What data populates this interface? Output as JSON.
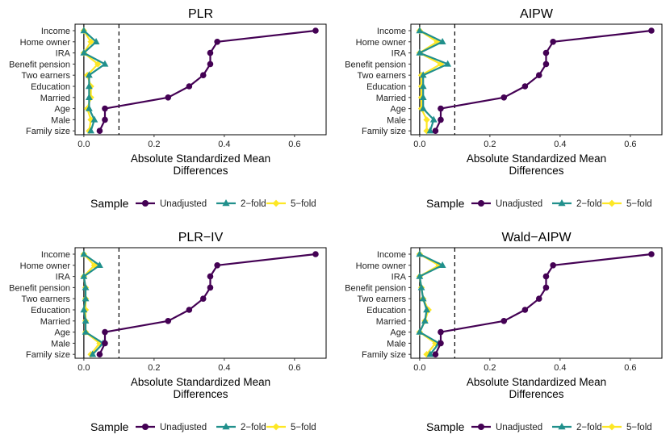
{
  "chart_data": [
    {
      "type": "line",
      "title": "PLR",
      "categories": [
        "Income",
        "Home owner",
        "IRA",
        "Benefit pension",
        "Two earners",
        "Education",
        "Married",
        "Age",
        "Male",
        "Family size"
      ],
      "xlabel": [
        "Absolute Standardized Mean",
        "Differences"
      ],
      "xlim": [
        -0.025,
        0.69
      ],
      "xticks": [
        "0.0",
        "0.2",
        "0.4",
        "0.6"
      ],
      "xtick_values": [
        0,
        0.2,
        0.4,
        0.6
      ],
      "ref_line": 0.1,
      "series": [
        {
          "name": "Unadjusted",
          "color": "#440154",
          "values": [
            0.66,
            0.38,
            0.36,
            0.36,
            0.34,
            0.3,
            0.24,
            0.06,
            0.06,
            0.045
          ]
        },
        {
          "name": "2-fold",
          "color": "#21908C",
          "values": [
            0.0,
            0.035,
            0.0,
            0.06,
            0.015,
            0.015,
            0.015,
            0.015,
            0.03,
            0.02
          ]
        },
        {
          "name": "5-fold",
          "color": "#FDE725",
          "values": [
            0.0,
            0.02,
            0.0,
            0.04,
            0.01,
            0.02,
            0.02,
            0.01,
            0.02,
            0.015
          ]
        }
      ],
      "legend": {
        "title": "Sample",
        "entries": [
          "Unadjusted",
          "2−fold",
          "5−fold"
        ]
      }
    },
    {
      "type": "line",
      "title": "AIPW",
      "categories": [
        "Income",
        "Home owner",
        "IRA",
        "Benefit pension",
        "Two earners",
        "Education",
        "Married",
        "Age",
        "Male",
        "Family size"
      ],
      "xlabel": [
        "Absolute Standardized Mean",
        "Differences"
      ],
      "xlim": [
        -0.025,
        0.69
      ],
      "xticks": [
        "0.0",
        "0.2",
        "0.4",
        "0.6"
      ],
      "xtick_values": [
        0,
        0.2,
        0.4,
        0.6
      ],
      "ref_line": 0.1,
      "series": [
        {
          "name": "Unadjusted",
          "color": "#440154",
          "values": [
            0.66,
            0.38,
            0.36,
            0.36,
            0.34,
            0.3,
            0.24,
            0.06,
            0.06,
            0.045
          ]
        },
        {
          "name": "2-fold",
          "color": "#21908C",
          "values": [
            0.0,
            0.065,
            0.0,
            0.08,
            0.01,
            0.01,
            0.01,
            0.01,
            0.04,
            0.03
          ]
        },
        {
          "name": "5-fold",
          "color": "#FDE725",
          "values": [
            0.0,
            0.05,
            0.0,
            0.06,
            0.005,
            0.005,
            0.005,
            0.005,
            0.02,
            0.02
          ]
        }
      ],
      "legend": {
        "title": "Sample",
        "entries": [
          "Unadjusted",
          "2−fold",
          "5−fold"
        ]
      }
    },
    {
      "type": "line",
      "title": "PLR−IV",
      "categories": [
        "Income",
        "Home owner",
        "IRA",
        "Benefit pension",
        "Two earners",
        "Education",
        "Married",
        "Age",
        "Male",
        "Family size"
      ],
      "xlabel": [
        "Absolute Standardized Mean",
        "Differences"
      ],
      "xlim": [
        -0.025,
        0.69
      ],
      "xticks": [
        "0.0",
        "0.2",
        "0.4",
        "0.6"
      ],
      "xtick_values": [
        0,
        0.2,
        0.4,
        0.6
      ],
      "ref_line": 0.1,
      "series": [
        {
          "name": "Unadjusted",
          "color": "#440154",
          "values": [
            0.66,
            0.38,
            0.36,
            0.36,
            0.34,
            0.3,
            0.24,
            0.06,
            0.06,
            0.045
          ]
        },
        {
          "name": "2-fold",
          "color": "#21908C",
          "values": [
            0.0,
            0.045,
            0.0,
            0.005,
            0.005,
            0.0,
            0.005,
            0.005,
            0.055,
            0.025
          ]
        },
        {
          "name": "5-fold",
          "color": "#FDE725",
          "values": [
            0.0,
            0.03,
            0.0,
            0.005,
            0.005,
            0.005,
            0.005,
            0.005,
            0.045,
            0.02
          ]
        }
      ],
      "legend": {
        "title": "Sample",
        "entries": [
          "Unadjusted",
          "2−fold",
          "5−fold"
        ]
      }
    },
    {
      "type": "line",
      "title": "Wald−AIPW",
      "categories": [
        "Income",
        "Home owner",
        "IRA",
        "Benefit pension",
        "Two earners",
        "Education",
        "Married",
        "Age",
        "Male",
        "Family size"
      ],
      "xlabel": [
        "Absolute Standardized Mean",
        "Differences"
      ],
      "xlim": [
        -0.025,
        0.69
      ],
      "xticks": [
        "0.0",
        "0.2",
        "0.4",
        "0.6"
      ],
      "xtick_values": [
        0,
        0.2,
        0.4,
        0.6
      ],
      "ref_line": 0.1,
      "series": [
        {
          "name": "Unadjusted",
          "color": "#440154",
          "values": [
            0.66,
            0.38,
            0.36,
            0.36,
            0.34,
            0.3,
            0.24,
            0.06,
            0.06,
            0.045
          ]
        },
        {
          "name": "2-fold",
          "color": "#21908C",
          "values": [
            0.0,
            0.065,
            0.0,
            0.005,
            0.01,
            0.02,
            0.015,
            0.0,
            0.055,
            0.03
          ]
        },
        {
          "name": "5-fold",
          "color": "#FDE725",
          "values": [
            0.0,
            0.055,
            0.0,
            0.005,
            0.01,
            0.025,
            0.015,
            0.0,
            0.045,
            0.02
          ]
        }
      ],
      "legend": {
        "title": "Sample",
        "entries": [
          "Unadjusted",
          "2−fold",
          "5−fold"
        ]
      }
    }
  ]
}
